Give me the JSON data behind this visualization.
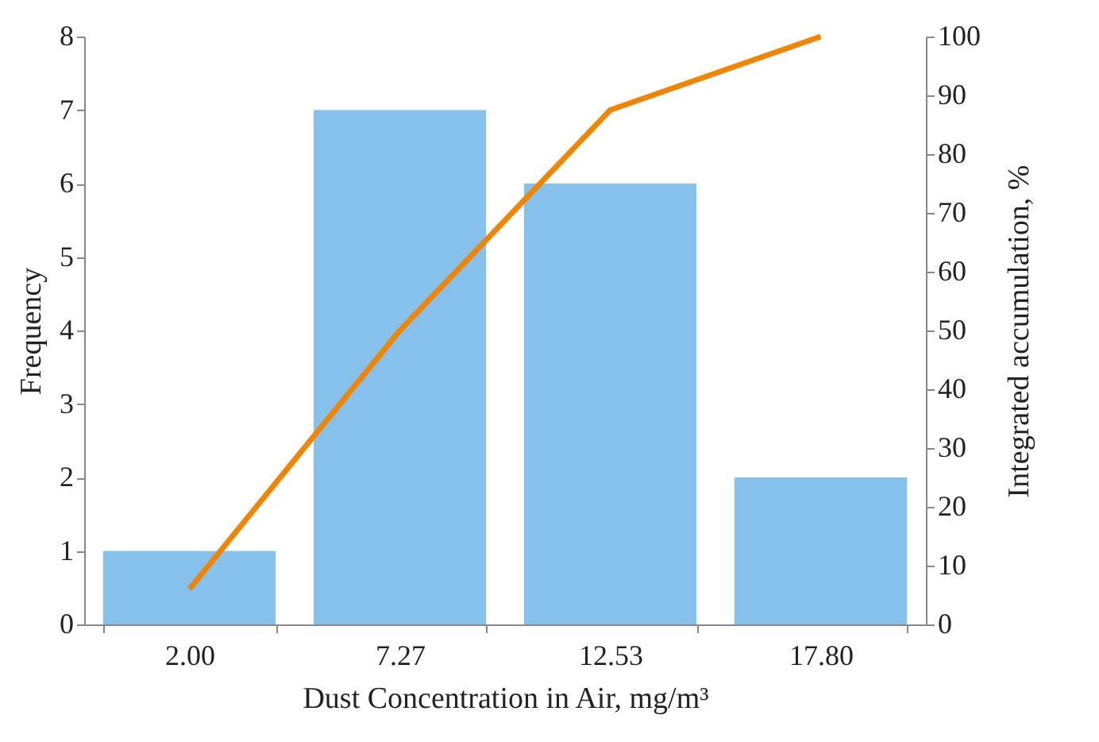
{
  "chart_data": {
    "type": "bar",
    "xlabel": "Dust Concentration in Air, mg/m³",
    "ylabel": "Frequency",
    "y2label": "Integrated accumulation, %",
    "categories": [
      "2.00",
      "7.27",
      "12.53",
      "17.80"
    ],
    "series": [
      {
        "color": "#85c1ea",
        "values": [
          1,
          7,
          6,
          2
        ]
      },
      {
        "type": "line",
        "axis": "y2",
        "color": "#f28500",
        "values": [
          6,
          50,
          87.5,
          100
        ]
      }
    ],
    "ylim": [
      0,
      8
    ],
    "yticks": [
      0,
      1,
      2,
      3,
      4,
      5,
      6,
      7,
      8
    ],
    "y2lim": [
      0,
      100
    ],
    "y2ticks": [
      0,
      10,
      20,
      30,
      40,
      50,
      60,
      70,
      80,
      90,
      100
    ]
  }
}
